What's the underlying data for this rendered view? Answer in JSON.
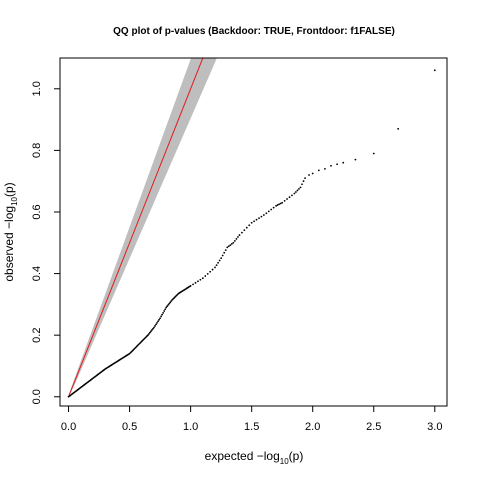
{
  "chart_data": {
    "type": "scatter",
    "title": "QQ plot of p-values (Backdoor: TRUE, Frontdoor: f1FALSE)",
    "xlabel": {
      "prefix": "expected ",
      "minus": "−",
      "log": "log",
      "sub": "10",
      "suffix": "(p)"
    },
    "ylabel": {
      "prefix": "observed ",
      "minus": "−",
      "log": "log",
      "sub": "10",
      "suffix": "(p)"
    },
    "xlim": [
      -0.07,
      3.1
    ],
    "ylim": [
      -0.03,
      1.1
    ],
    "x_ticks": [
      0.0,
      0.5,
      1.0,
      1.5,
      2.0,
      2.5,
      3.0
    ],
    "x_tick_labels": [
      "0.0",
      "0.5",
      "1.0",
      "1.5",
      "2.0",
      "2.5",
      "3.0"
    ],
    "y_ticks": [
      0.0,
      0.2,
      0.4,
      0.6,
      0.8,
      1.0
    ],
    "y_tick_labels": [
      "0.0",
      "0.2",
      "0.4",
      "0.6",
      "0.8",
      "1.0"
    ],
    "reference_line": {
      "slope": 1,
      "intercept": 0,
      "color": "#e41a1c"
    },
    "confidence_band_color": "#bebebe",
    "points_color": "#000000",
    "curve": [
      [
        0.0,
        0.0
      ],
      [
        0.1,
        0.03
      ],
      [
        0.2,
        0.06
      ],
      [
        0.3,
        0.09
      ],
      [
        0.4,
        0.115
      ],
      [
        0.5,
        0.14
      ],
      [
        0.55,
        0.16
      ],
      [
        0.6,
        0.18
      ],
      [
        0.65,
        0.2
      ],
      [
        0.7,
        0.225
      ],
      [
        0.75,
        0.255
      ],
      [
        0.8,
        0.29
      ],
      [
        0.85,
        0.315
      ],
      [
        0.9,
        0.335
      ],
      [
        1.0,
        0.36
      ],
      [
        1.1,
        0.385
      ],
      [
        1.2,
        0.42
      ],
      [
        1.25,
        0.45
      ],
      [
        1.3,
        0.485
      ],
      [
        1.35,
        0.5
      ],
      [
        1.4,
        0.525
      ],
      [
        1.5,
        0.565
      ],
      [
        1.6,
        0.59
      ],
      [
        1.7,
        0.62
      ],
      [
        1.75,
        0.63
      ],
      [
        1.85,
        0.66
      ],
      [
        1.9,
        0.68
      ],
      [
        1.95,
        0.72
      ]
    ],
    "extra_points": [
      [
        1.97,
        0.72
      ],
      [
        2.0,
        0.725
      ],
      [
        2.05,
        0.735
      ],
      [
        2.1,
        0.74
      ],
      [
        2.15,
        0.75
      ],
      [
        2.2,
        0.755
      ],
      [
        2.25,
        0.76
      ],
      [
        2.35,
        0.77
      ],
      [
        2.5,
        0.79
      ],
      [
        2.7,
        0.87
      ],
      [
        3.0,
        1.06
      ]
    ]
  }
}
